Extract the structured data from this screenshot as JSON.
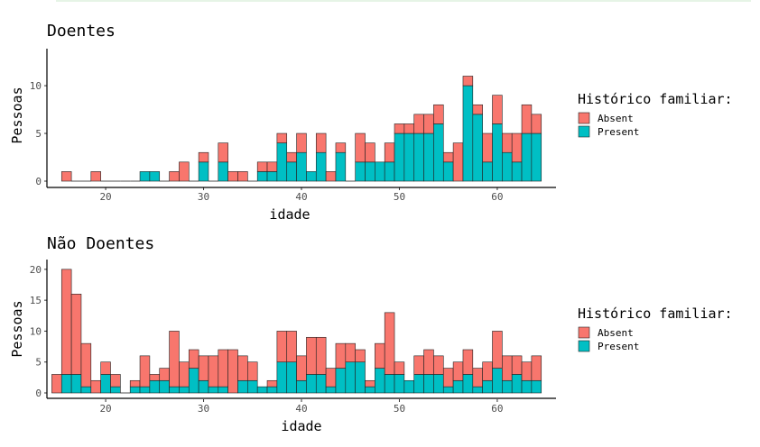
{
  "colors": {
    "absent": "#F8766D",
    "present": "#00BFC4"
  },
  "chart_data": [
    {
      "type": "bar",
      "stacked": true,
      "title": "Doentes",
      "xlabel": "idade",
      "ylabel": "Pessoas",
      "xlim": [
        14,
        66
      ],
      "ylim": [
        0,
        13.5
      ],
      "xticks": [
        20,
        30,
        40,
        50,
        60
      ],
      "yticks": [
        0,
        5,
        10
      ],
      "x": [
        16,
        17,
        18,
        19,
        20,
        21,
        22,
        23,
        24,
        25,
        26,
        27,
        28,
        29,
        30,
        31,
        32,
        33,
        34,
        35,
        36,
        37,
        38,
        39,
        40,
        41,
        42,
        43,
        44,
        45,
        46,
        47,
        48,
        49,
        50,
        51,
        52,
        53,
        54,
        55,
        56,
        57,
        58,
        59,
        60,
        61,
        62,
        63,
        64
      ],
      "series": [
        {
          "name": "Absent",
          "values": [
            1,
            0,
            0,
            1,
            0,
            0,
            0,
            0,
            0,
            0,
            0,
            1,
            2,
            0,
            1,
            0,
            2,
            1,
            1,
            0,
            1,
            1,
            1,
            1,
            2,
            0,
            2,
            1,
            1,
            0,
            3,
            2,
            0,
            2,
            1,
            1,
            2,
            2,
            2,
            1,
            4,
            1,
            1,
            3,
            3,
            2,
            3,
            3,
            2
          ]
        },
        {
          "name": "Present",
          "values": [
            0,
            0,
            0,
            0,
            0,
            0,
            0,
            0,
            1,
            1,
            0,
            0,
            0,
            0,
            2,
            0,
            2,
            0,
            0,
            0,
            1,
            1,
            4,
            2,
            3,
            1,
            3,
            0,
            3,
            0,
            2,
            2,
            2,
            2,
            5,
            5,
            5,
            5,
            6,
            2,
            0,
            10,
            7,
            2,
            6,
            3,
            2,
            5,
            5
          ]
        }
      ],
      "legend": {
        "title": "Histórico familiar:",
        "position": "right",
        "labels": [
          "Absent",
          "Present"
        ]
      }
    },
    {
      "type": "bar",
      "stacked": true,
      "title": "Não Doentes",
      "xlabel": "idade",
      "ylabel": "Pessoas",
      "xlim": [
        14,
        66
      ],
      "ylim": [
        0,
        21
      ],
      "xticks": [
        20,
        30,
        40,
        50,
        60
      ],
      "yticks": [
        0,
        5,
        10,
        15,
        20
      ],
      "x": [
        15,
        16,
        17,
        18,
        19,
        20,
        21,
        22,
        23,
        24,
        25,
        26,
        27,
        28,
        29,
        30,
        31,
        32,
        33,
        34,
        35,
        36,
        37,
        38,
        39,
        40,
        41,
        42,
        43,
        44,
        45,
        46,
        47,
        48,
        49,
        50,
        51,
        52,
        53,
        54,
        55,
        56,
        57,
        58,
        59,
        60,
        61,
        62,
        63,
        64
      ],
      "series": [
        {
          "name": "Absent",
          "values": [
            3,
            17,
            13,
            7,
            2,
            2,
            2,
            0,
            1,
            5,
            1,
            2,
            9,
            4,
            3,
            4,
            5,
            6,
            7,
            4,
            3,
            0,
            1,
            5,
            5,
            4,
            6,
            6,
            3,
            4,
            3,
            2,
            1,
            4,
            10,
            2,
            0,
            3,
            4,
            3,
            3,
            3,
            4,
            3,
            3,
            6,
            4,
            3,
            3,
            4
          ]
        },
        {
          "name": "Present",
          "values": [
            0,
            3,
            3,
            1,
            0,
            3,
            1,
            0,
            1,
            1,
            2,
            2,
            1,
            1,
            4,
            2,
            1,
            1,
            0,
            2,
            2,
            1,
            1,
            5,
            5,
            2,
            3,
            3,
            1,
            4,
            5,
            5,
            1,
            4,
            3,
            3,
            2,
            3,
            3,
            3,
            1,
            2,
            3,
            1,
            2,
            4,
            2,
            3,
            2,
            2
          ]
        }
      ],
      "legend": {
        "title": "Histórico familiar:",
        "position": "right",
        "labels": [
          "Absent",
          "Present"
        ]
      }
    }
  ]
}
